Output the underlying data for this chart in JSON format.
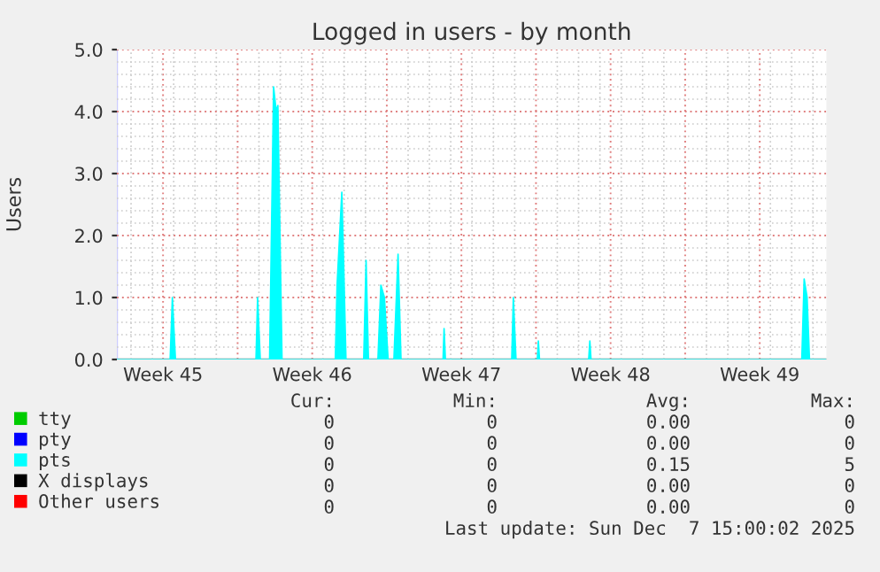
{
  "chart_data": {
    "type": "area",
    "title": "Logged in users - by month",
    "ylabel": "Users",
    "xlim": [
      "2025-11-04T08:00",
      "2025-12-07T15:00"
    ],
    "ylim": [
      0,
      5
    ],
    "xticks": [
      {
        "value": "2025-11-06T12:00",
        "label": "Week 45"
      },
      {
        "value": "2025-11-10T00:00",
        "label": null
      },
      {
        "value": "2025-11-13T12:00",
        "label": "Week 46"
      },
      {
        "value": "2025-11-17T00:00",
        "label": null
      },
      {
        "value": "2025-11-20T12:00",
        "label": "Week 47"
      },
      {
        "value": "2025-11-24T00:00",
        "label": null
      },
      {
        "value": "2025-11-27T12:00",
        "label": "Week 48"
      },
      {
        "value": "2025-12-01T00:00",
        "label": null
      },
      {
        "value": "2025-12-04T12:00",
        "label": "Week 49"
      }
    ],
    "yticks": [
      {
        "value": 0,
        "label": "0.0"
      },
      {
        "value": 1,
        "label": "1.0"
      },
      {
        "value": 2,
        "label": "2.0"
      },
      {
        "value": 3,
        "label": "3.0"
      },
      {
        "value": 4,
        "label": "4.0"
      },
      {
        "value": 5,
        "label": "5.0"
      }
    ],
    "grid": true,
    "legend": "bottom",
    "series": [
      {
        "name": "tty",
        "color": "#00cc00"
      },
      {
        "name": "pty",
        "color": "#0000ff"
      },
      {
        "name": "pts",
        "color": "#00ffff",
        "x": [
          "2025-11-04T08:00",
          "2025-11-06T20:00",
          "2025-11-06T22:30",
          "2025-11-07T02:00",
          "2025-11-10T20:40",
          "2025-11-10T22:30",
          "2025-11-11T01:30",
          "2025-11-11T12:00",
          "2025-11-11T16:30",
          "2025-11-11T19:30",
          "2025-11-11T21:20",
          "2025-11-12T02:00",
          "2025-11-14T14:00",
          "2025-11-14T16:00",
          "2025-11-14T21:20",
          "2025-11-15T00:00",
          "2025-11-15T02:00",
          "2025-11-15T22:00",
          "2025-11-16T00:40",
          "2025-11-16T03:20",
          "2025-11-16T14:00",
          "2025-11-16T17:20",
          "2025-11-16T21:20",
          "2025-11-17T01:30",
          "2025-11-17T08:00",
          "2025-11-17T12:40",
          "2025-11-17T16:00",
          "2025-11-19T15:20",
          "2025-11-19T16:30",
          "2025-11-19T18:00",
          "2025-11-22T20:40",
          "2025-11-22T22:30",
          "2025-11-23T01:30",
          "2025-11-24T01:30",
          "2025-11-24T02:40",
          "2025-11-24T04:00",
          "2025-11-26T11:20",
          "2025-11-26T12:40",
          "2025-11-26T14:00",
          "2025-12-06T11:20",
          "2025-12-06T14:00",
          "2025-12-06T17:20",
          "2025-12-06T20:00",
          "2025-12-07T15:00"
        ],
        "values": [
          0,
          0,
          1.0,
          0,
          0,
          1.0,
          0,
          0,
          4.4,
          4.0,
          4.1,
          0,
          0,
          1.2,
          2.7,
          1.2,
          0,
          0,
          1.6,
          0,
          0,
          1.2,
          1.0,
          0,
          0,
          1.7,
          0,
          0,
          0.5,
          0,
          0,
          1.0,
          0,
          0,
          0.3,
          0,
          0,
          0.3,
          0,
          0,
          1.3,
          1.0,
          0,
          0
        ]
      },
      {
        "name": "X displays",
        "color": "#000000"
      },
      {
        "name": "Other users",
        "color": "#ff0000"
      }
    ],
    "annotations": [
      "Cur:",
      "Min:",
      "Avg:",
      "Max:",
      "0",
      "0",
      "0.00",
      "0",
      "0",
      "0",
      "0.00",
      "0",
      "0",
      "0",
      "0.15",
      "5",
      "0",
      "0",
      "0.00",
      "0",
      "0",
      "0",
      "0.00",
      "0",
      "Last update: Sun Dec  7 15:00:02 2025"
    ]
  }
}
